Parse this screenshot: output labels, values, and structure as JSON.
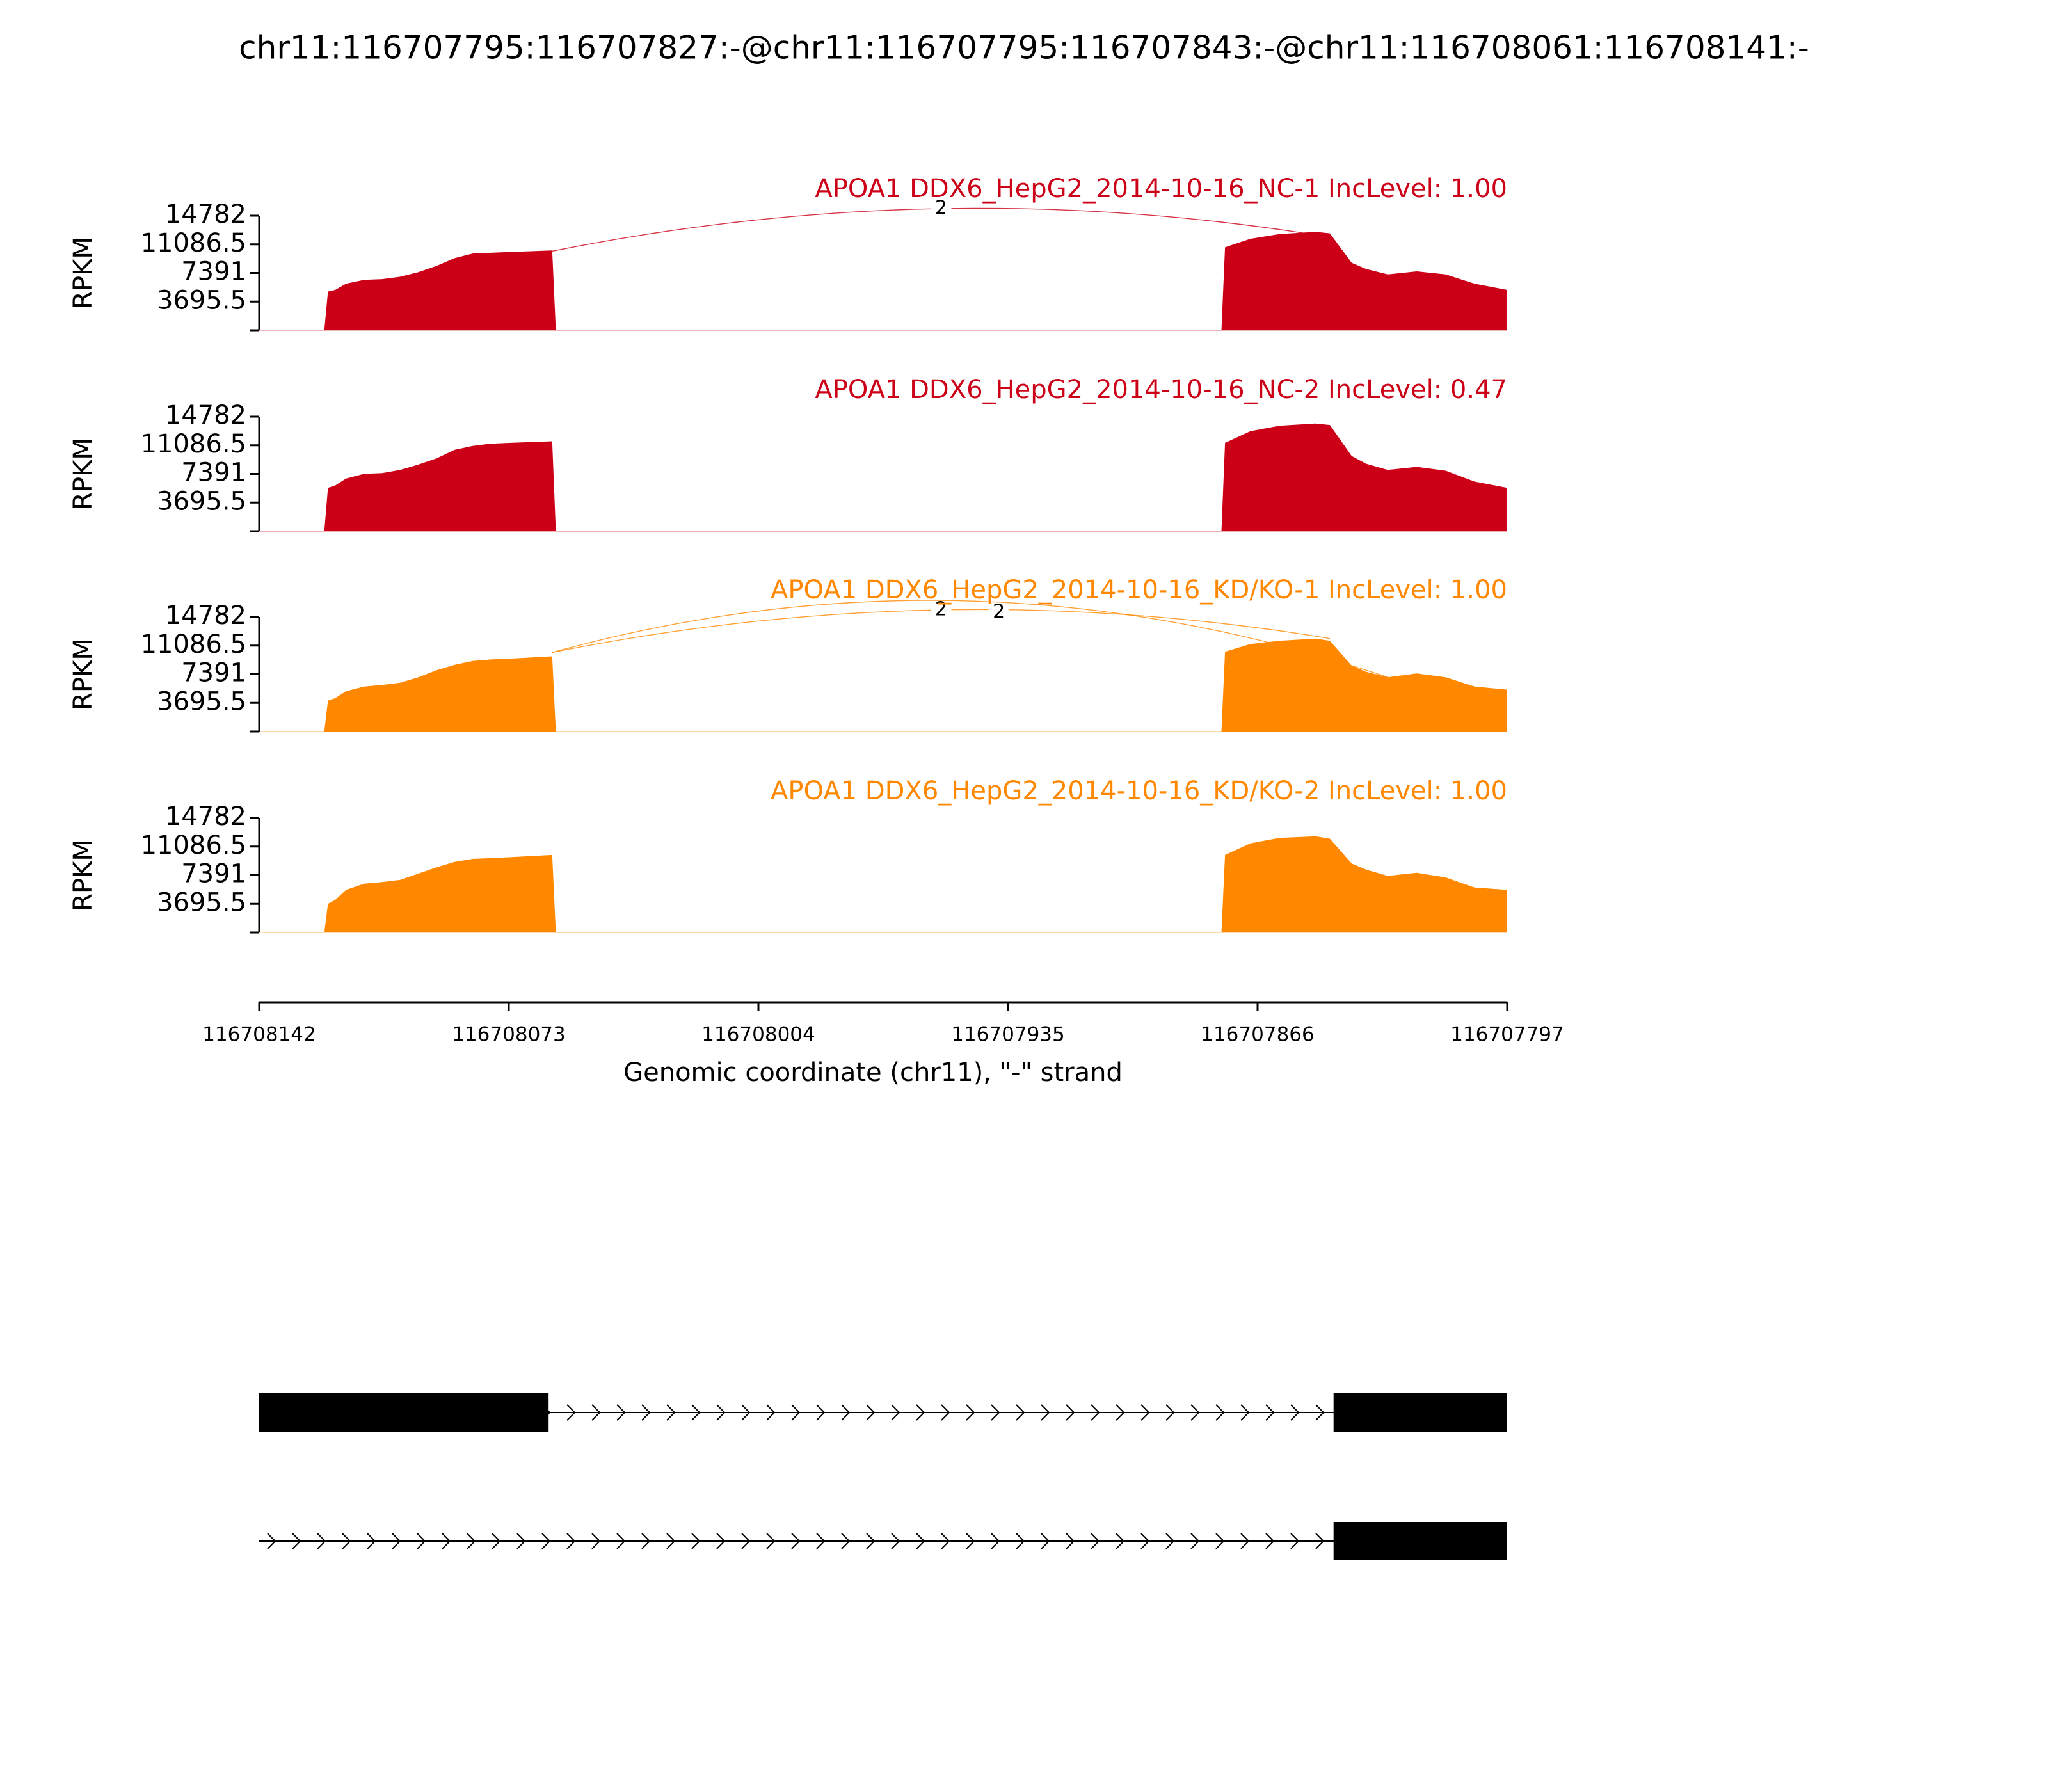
{
  "title": "chr11:116707795:116707827:-@chr11:116707795:116707843:-@chr11:116708061:116708141:-",
  "colors": {
    "nc": "#CC0016",
    "kd": "#FF8800",
    "axis": "#000000",
    "gene": "#000000"
  },
  "chart_data": {
    "type": "area",
    "title": "chr11:116707795:116707827:-@chr11:116707795:116707843:-@chr11:116708061:116708141:-",
    "xlabel": "Genomic coordinate (chr11), \"-\" strand",
    "ylabel": "RPKM",
    "x_ticks": [
      "116708142",
      "116708073",
      "116708004",
      "116707935",
      "116707866",
      "116707797"
    ],
    "xlim": [
      116708142,
      116707797
    ],
    "y_ticks": [
      "3695.5",
      "7391",
      "11086.5",
      "14782"
    ],
    "ylim": [
      0,
      14782
    ],
    "panels": [
      {
        "name": "APOA1 DDX6_HepG2_2014-10-16_NC-1 IncLevel: 1.00",
        "group": "nc",
        "profile": [
          [
            116708142,
            0
          ],
          [
            116708124,
            0
          ],
          [
            116708123,
            5000
          ],
          [
            116708121,
            5200
          ],
          [
            116708118,
            6000
          ],
          [
            116708113,
            6500
          ],
          [
            116708108,
            6600
          ],
          [
            116708103,
            6900
          ],
          [
            116708098,
            7500
          ],
          [
            116708093,
            8300
          ],
          [
            116708088,
            9300
          ],
          [
            116708083,
            9900
          ],
          [
            116708078,
            10000
          ],
          [
            116708073,
            10100
          ],
          [
            116708061,
            10300
          ],
          [
            116708060,
            0
          ],
          [
            116707876,
            0
          ],
          [
            116707875,
            10700
          ],
          [
            116707868,
            11800
          ],
          [
            116707860,
            12400
          ],
          [
            116707850,
            12700
          ],
          [
            116707846,
            12500
          ],
          [
            116707840,
            8700
          ],
          [
            116707836,
            7900
          ],
          [
            116707830,
            7200
          ],
          [
            116707822,
            7600
          ],
          [
            116707814,
            7200
          ],
          [
            116707806,
            6000
          ],
          [
            116707797,
            5200
          ]
        ],
        "junctions": [
          {
            "from": 116708061,
            "to": 116707846,
            "label": "2"
          }
        ]
      },
      {
        "name": "APOA1 DDX6_HepG2_2014-10-16_NC-2 IncLevel: 0.47",
        "group": "nc",
        "profile": [
          [
            116708142,
            0
          ],
          [
            116708124,
            0
          ],
          [
            116708123,
            5600
          ],
          [
            116708121,
            5900
          ],
          [
            116708118,
            6800
          ],
          [
            116708113,
            7400
          ],
          [
            116708108,
            7500
          ],
          [
            116708103,
            7900
          ],
          [
            116708098,
            8600
          ],
          [
            116708093,
            9400
          ],
          [
            116708088,
            10500
          ],
          [
            116708083,
            11000
          ],
          [
            116708078,
            11300
          ],
          [
            116708073,
            11400
          ],
          [
            116708061,
            11600
          ],
          [
            116708060,
            0
          ],
          [
            116707876,
            0
          ],
          [
            116707875,
            11400
          ],
          [
            116707868,
            12900
          ],
          [
            116707860,
            13600
          ],
          [
            116707850,
            13900
          ],
          [
            116707846,
            13700
          ],
          [
            116707840,
            9700
          ],
          [
            116707836,
            8700
          ],
          [
            116707830,
            7900
          ],
          [
            116707822,
            8300
          ],
          [
            116707814,
            7800
          ],
          [
            116707806,
            6400
          ],
          [
            116707797,
            5600
          ]
        ],
        "junctions": []
      },
      {
        "name": "APOA1 DDX6_HepG2_2014-10-16_KD/KO-1 IncLevel: 1.00",
        "group": "kd",
        "profile": [
          [
            116708142,
            0
          ],
          [
            116708124,
            0
          ],
          [
            116708123,
            4000
          ],
          [
            116708121,
            4300
          ],
          [
            116708118,
            5200
          ],
          [
            116708113,
            5800
          ],
          [
            116708108,
            6000
          ],
          [
            116708103,
            6300
          ],
          [
            116708098,
            7000
          ],
          [
            116708093,
            7900
          ],
          [
            116708088,
            8600
          ],
          [
            116708083,
            9100
          ],
          [
            116708078,
            9300
          ],
          [
            116708073,
            9400
          ],
          [
            116708061,
            9700
          ],
          [
            116708060,
            0
          ],
          [
            116707876,
            0
          ],
          [
            116707875,
            10300
          ],
          [
            116707868,
            11300
          ],
          [
            116707860,
            11700
          ],
          [
            116707850,
            12000
          ],
          [
            116707846,
            11700
          ],
          [
            116707840,
            8500
          ],
          [
            116707836,
            7700
          ],
          [
            116707830,
            7000
          ],
          [
            116707822,
            7500
          ],
          [
            116707814,
            7000
          ],
          [
            116707806,
            5800
          ],
          [
            116707797,
            5400
          ]
        ],
        "junctions": [
          {
            "from": 116708061,
            "to": 116707846,
            "label": "2"
          },
          {
            "from": 116708061,
            "to": 116707830,
            "label": "2"
          }
        ]
      },
      {
        "name": "APOA1 DDX6_HepG2_2014-10-16_KD/KO-2 IncLevel: 1.00",
        "group": "kd",
        "profile": [
          [
            116708142,
            0
          ],
          [
            116708124,
            0
          ],
          [
            116708123,
            3700
          ],
          [
            116708121,
            4200
          ],
          [
            116708118,
            5500
          ],
          [
            116708113,
            6300
          ],
          [
            116708108,
            6500
          ],
          [
            116708103,
            6800
          ],
          [
            116708098,
            7600
          ],
          [
            116708093,
            8400
          ],
          [
            116708088,
            9100
          ],
          [
            116708083,
            9500
          ],
          [
            116708078,
            9600
          ],
          [
            116708073,
            9700
          ],
          [
            116708061,
            10000
          ],
          [
            116708060,
            0
          ],
          [
            116707876,
            0
          ],
          [
            116707875,
            10000
          ],
          [
            116707868,
            11500
          ],
          [
            116707860,
            12200
          ],
          [
            116707850,
            12400
          ],
          [
            116707846,
            12100
          ],
          [
            116707840,
            8900
          ],
          [
            116707836,
            8100
          ],
          [
            116707830,
            7300
          ],
          [
            116707822,
            7700
          ],
          [
            116707814,
            7100
          ],
          [
            116707806,
            5800
          ],
          [
            116707797,
            5500
          ]
        ],
        "junctions": []
      }
    ],
    "transcripts": [
      {
        "exons": [
          [
            116708142,
            116708062
          ],
          [
            116707845,
            116707797
          ]
        ]
      },
      {
        "exons": [
          [
            116707845,
            116707797
          ]
        ]
      }
    ]
  }
}
